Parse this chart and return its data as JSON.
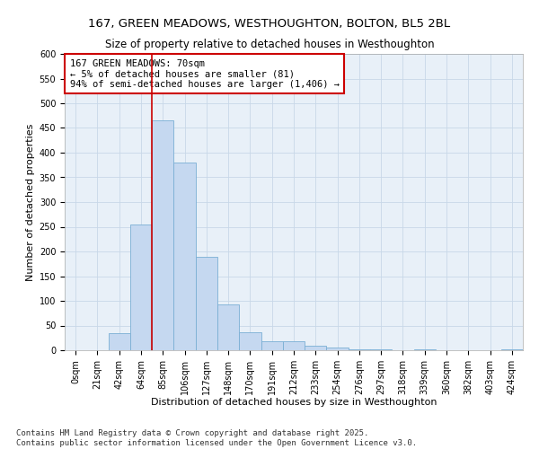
{
  "title1": "167, GREEN MEADOWS, WESTHOUGHTON, BOLTON, BL5 2BL",
  "title2": "Size of property relative to detached houses in Westhoughton",
  "xlabel": "Distribution of detached houses by size in Westhoughton",
  "ylabel": "Number of detached properties",
  "bin_labels": [
    "0sqm",
    "21sqm",
    "42sqm",
    "64sqm",
    "85sqm",
    "106sqm",
    "127sqm",
    "148sqm",
    "170sqm",
    "191sqm",
    "212sqm",
    "233sqm",
    "254sqm",
    "276sqm",
    "297sqm",
    "318sqm",
    "339sqm",
    "360sqm",
    "382sqm",
    "403sqm",
    "424sqm"
  ],
  "bar_values": [
    0,
    0,
    35,
    255,
    465,
    380,
    190,
    93,
    37,
    18,
    18,
    10,
    5,
    2,
    1,
    0,
    1,
    0,
    0,
    0,
    1
  ],
  "bar_color": "#c5d8f0",
  "bar_edge_color": "#7aafd4",
  "vline_color": "#cc0000",
  "vline_x_index": 3,
  "annotation_text": "167 GREEN MEADOWS: 70sqm\n← 5% of detached houses are smaller (81)\n94% of semi-detached houses are larger (1,406) →",
  "annotation_box_color": "#ffffff",
  "annotation_box_edge": "#cc0000",
  "ylim": [
    0,
    600
  ],
  "yticks": [
    0,
    50,
    100,
    150,
    200,
    250,
    300,
    350,
    400,
    450,
    500,
    550,
    600
  ],
  "grid_color": "#c8d8e8",
  "bg_color": "#e8f0f8",
  "footer": "Contains HM Land Registry data © Crown copyright and database right 2025.\nContains public sector information licensed under the Open Government Licence v3.0.",
  "title1_fontsize": 9.5,
  "title2_fontsize": 8.5,
  "xlabel_fontsize": 8,
  "ylabel_fontsize": 8,
  "tick_fontsize": 7,
  "annotation_fontsize": 7.5,
  "footer_fontsize": 6.5
}
